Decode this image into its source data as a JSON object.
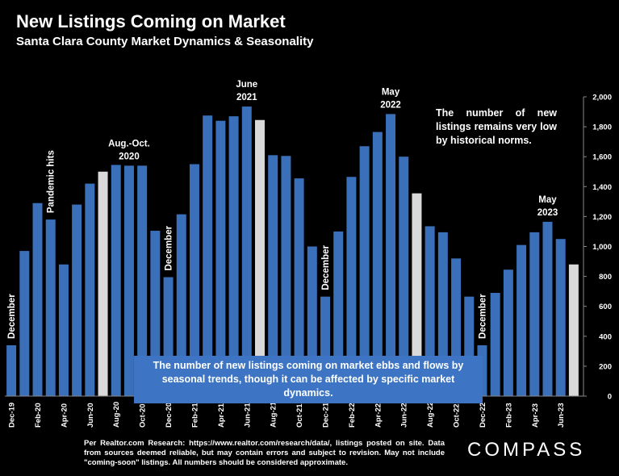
{
  "header": {
    "title": "New Listings Coming on Market",
    "subtitle": "Santa Clara County Market Dynamics & Seasonality"
  },
  "note_top_right": "The number of new listings remains very low by historical norms.",
  "callout": "The number of new listings coming on market ebbs and flows by seasonal trends, though it can be affected by specific market dynamics.",
  "footer": "Per Realtor.com Research: https://www.realtor.com/research/data/, listings posted on site. Data from sources deemed reliable, but may contain errors and subject to revision. May not include \"coming-soon\" listings. All numbers should be considered approximate.",
  "brand": "COMPASS",
  "colors": {
    "bar": "#3a6fb9",
    "highlight": "#d9d9d9",
    "background": "#000000",
    "callout": "#3d74c4"
  },
  "chart_data": {
    "type": "bar",
    "categories": [
      "Dec-19",
      "Jan-20",
      "Feb-20",
      "Mar-20",
      "Apr-20",
      "May-20",
      "Jun-20",
      "Jul-20",
      "Aug-20",
      "Sep-20",
      "Oct-20",
      "Nov-20",
      "Dec-20",
      "Jan-21",
      "Feb-21",
      "Mar-21",
      "Apr-21",
      "May-21",
      "Jun-21",
      "Jul-21",
      "Aug-21",
      "Sep-21",
      "Oct-21",
      "Nov-21",
      "Dec-21",
      "Jan-22",
      "Feb-22",
      "Mar-22",
      "Apr-22",
      "May-22",
      "Jun-22",
      "Jul-22",
      "Aug-22",
      "Sep-22",
      "Oct-22",
      "Nov-22",
      "Dec-22",
      "Jan-23",
      "Feb-23",
      "Mar-23",
      "Apr-23",
      "May-23",
      "Jun-23",
      "Jul-23"
    ],
    "tick_labels": [
      "Dec-19",
      "",
      "Feb-20",
      "",
      "Apr-20",
      "",
      "Jun-20",
      "",
      "Aug-20",
      "",
      "Oct-20",
      "",
      "Dec-20",
      "",
      "Feb-21",
      "",
      "Apr-21",
      "",
      "Jun-21",
      "",
      "Aug-21",
      "",
      "Oct-21",
      "",
      "Dec-21",
      "",
      "Feb-22",
      "",
      "Apr-22",
      "",
      "Jun-22",
      "",
      "Aug-22",
      "",
      "Oct-22",
      "",
      "Dec-22",
      "",
      "Feb-23",
      "",
      "Apr-23",
      "",
      "Jun-23",
      ""
    ],
    "values": [
      340,
      970,
      1290,
      1180,
      880,
      1280,
      1420,
      1500,
      1545,
      1540,
      1540,
      1105,
      795,
      1215,
      1550,
      1875,
      1840,
      1870,
      1935,
      1845,
      1610,
      1605,
      1455,
      1000,
      665,
      1100,
      1465,
      1670,
      1765,
      1885,
      1600,
      1355,
      1135,
      1095,
      920,
      665,
      340,
      690,
      845,
      1010,
      1095,
      1165,
      1050,
      880
    ],
    "highlight_indices": [
      7,
      19,
      31,
      43
    ],
    "ylim": [
      0,
      2000
    ],
    "yticks": [
      0,
      200,
      400,
      600,
      800,
      1000,
      1200,
      1400,
      1600,
      1800,
      2000
    ],
    "ytick_labels": [
      "0",
      "200",
      "400",
      "600",
      "800",
      "1,000",
      "1,200",
      "1,400",
      "1,600",
      "1,800",
      "2,000"
    ],
    "y_axis_side": "right",
    "annotations": [
      {
        "bar": 0,
        "text": "December",
        "style": "vertical"
      },
      {
        "bar": 3,
        "text": "Pandemic hits",
        "style": "vertical"
      },
      {
        "bar": 9,
        "lines": [
          "Aug.-Oct.",
          "2020"
        ],
        "style": "horizontal"
      },
      {
        "bar": 12,
        "text": "December",
        "style": "vertical"
      },
      {
        "bar": 18,
        "lines": [
          "June",
          "2021"
        ],
        "style": "horizontal"
      },
      {
        "bar": 24,
        "text": "December",
        "style": "vertical"
      },
      {
        "bar": 29,
        "lines": [
          "May",
          "2022"
        ],
        "style": "horizontal"
      },
      {
        "bar": 36,
        "text": "December",
        "style": "vertical"
      },
      {
        "bar": 41,
        "lines": [
          "May",
          "2023"
        ],
        "style": "horizontal"
      }
    ]
  }
}
